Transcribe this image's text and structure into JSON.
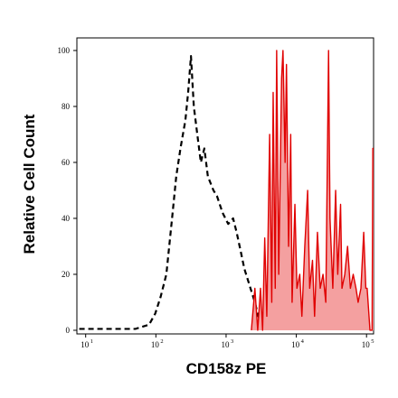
{
  "chart_data": {
    "type": "line",
    "x_label": "CD158z PE",
    "y_label": "Relative Cell Count",
    "x_log": true,
    "xlim": [
      7.5,
      126000
    ],
    "ylim": [
      -1.3,
      104.5
    ],
    "xticks": [
      {
        "value": 10,
        "label": "10",
        "exponent": "1"
      },
      {
        "value": 100,
        "label": "10",
        "exponent": "2"
      },
      {
        "value": 1000,
        "label": "10",
        "exponent": "3"
      },
      {
        "value": 10000,
        "label": "10",
        "exponent": "4"
      },
      {
        "value": 100000,
        "label": "10",
        "exponent": "5"
      }
    ],
    "yticks": [
      0,
      20,
      40,
      60,
      80,
      100
    ],
    "series": [
      {
        "color": "#000000",
        "dashed": true,
        "filled": false,
        "x": [
          8.1,
          28,
          51,
          80,
          98,
          117,
          141,
          170,
          195,
          224,
          263,
          288,
          316,
          347,
          389,
          437,
          490,
          550,
          661,
          741,
          891,
          1072,
          1259,
          1413,
          1622,
          1820,
          2042,
          2291,
          2570,
          2884,
          3311,
          3890
        ],
        "values": [
          0.5,
          0.5,
          0.5,
          2,
          6,
          12,
          20,
          40,
          55,
          65,
          75,
          85,
          98,
          80,
          70,
          60,
          65,
          55,
          50,
          48,
          42,
          38,
          40,
          35,
          28,
          22,
          18,
          14,
          10,
          5,
          2,
          1
        ]
      },
      {
        "color": "#e00000",
        "fill": "#f4a0a0",
        "dashed": false,
        "filled": true,
        "x": [
          2290,
          2570,
          2820,
          3090,
          3310,
          3550,
          3800,
          4170,
          4470,
          4680,
          5010,
          5250,
          5620,
          6170,
          6460,
          6920,
          7240,
          7760,
          8320,
          8710,
          9550,
          10200,
          11200,
          12000,
          13200,
          14500,
          15500,
          17000,
          18200,
          20000,
          21900,
          24000,
          26300,
          28800,
          30200,
          33100,
          36300,
          38900,
          42700,
          44700,
          49000,
          53700,
          58900,
          64600,
          70800,
          75900,
          83200,
          91200,
          97700,
          102000,
          112000,
          120000,
          123000,
          126000
        ],
        "values": [
          0,
          15,
          0,
          15,
          0,
          33,
          5,
          70,
          10,
          85,
          15,
          100,
          20,
          90,
          100,
          60,
          95,
          30,
          70,
          10,
          45,
          15,
          20,
          5,
          30,
          50,
          15,
          25,
          5,
          35,
          15,
          20,
          10,
          100,
          40,
          15,
          50,
          20,
          45,
          15,
          20,
          30,
          15,
          20,
          15,
          10,
          15,
          35,
          15,
          15,
          0,
          0,
          65,
          65
        ]
      }
    ]
  }
}
